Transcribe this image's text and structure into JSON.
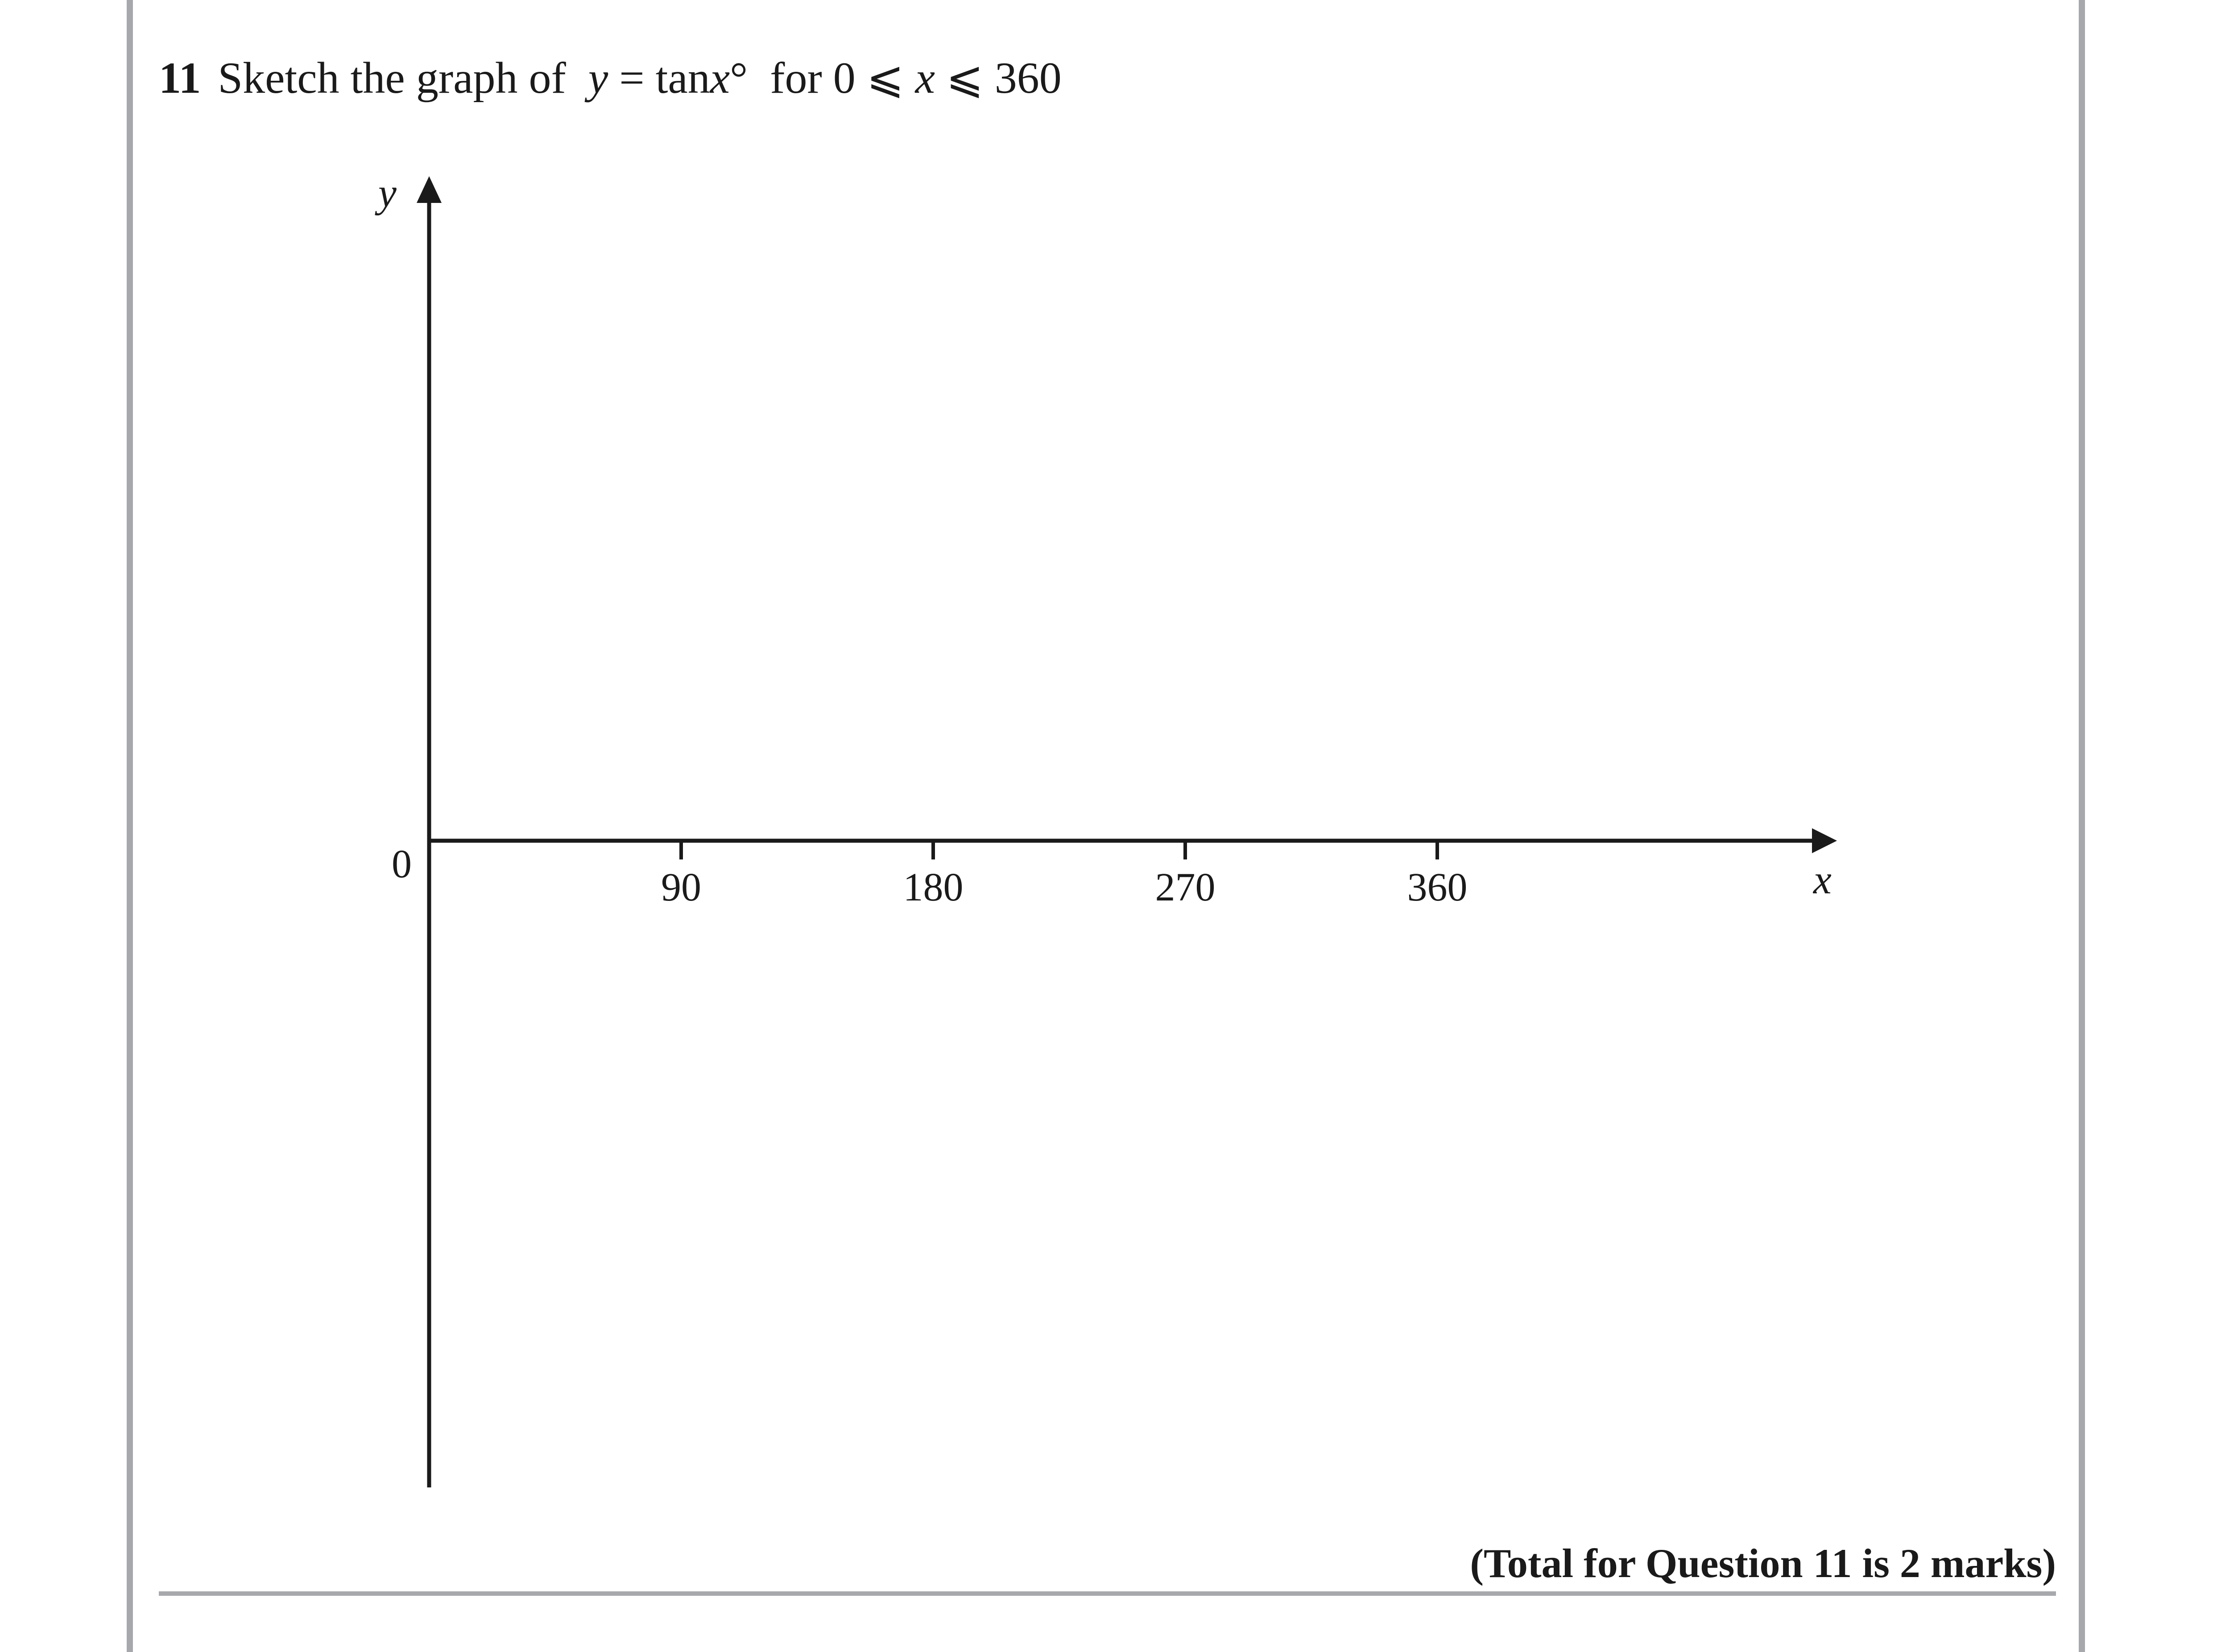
{
  "question": {
    "number": "11",
    "prompt": "Sketch the graph of",
    "equation_y": "y",
    "equation_eq": " = tan",
    "equation_x": "x",
    "equation_deg": "°",
    "range_for": "for 0",
    "range_le1": " ⩽ ",
    "range_x": "x",
    "range_le2": " ⩽ ",
    "range_max": "360"
  },
  "chart_data": {
    "type": "line",
    "xlabel": "x",
    "ylabel": "y",
    "origin_label": "0",
    "x_ticks": [
      90,
      180,
      270,
      360
    ],
    "x_tick_labels": [
      "90",
      "180",
      "270",
      "360"
    ],
    "xlim": [
      0,
      460
    ],
    "series": []
  },
  "footer": {
    "total_marks": "(Total for Question 11 is 2 marks)"
  }
}
